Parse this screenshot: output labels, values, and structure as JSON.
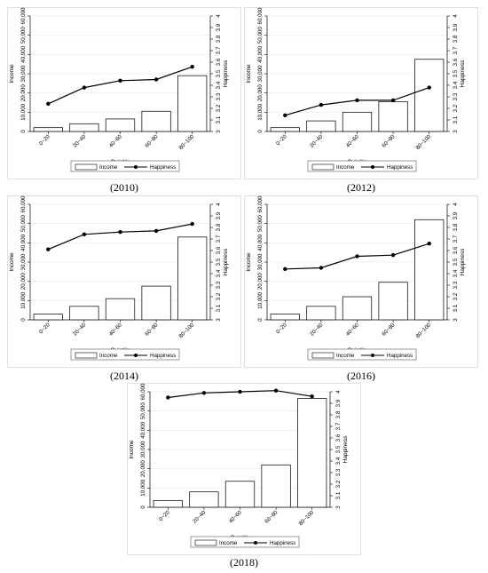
{
  "shared": {
    "xlabel": "Quintile",
    "ylabel_left": "Income",
    "ylabel_right": "Happiness",
    "categories": [
      "0~20",
      "20~40",
      "40~60",
      "60~80",
      "80~100"
    ],
    "left_ticks": [
      "0",
      "10,000",
      "20,000",
      "30,000",
      "40,000",
      "50,000",
      "60,000"
    ],
    "right_ticks": [
      "3",
      "3.1",
      "3.2",
      "3.3",
      "3.4",
      "3.5",
      "3.6",
      "3.7",
      "3.8",
      "3.9",
      "4"
    ],
    "legend": [
      "Income",
      "Happiness"
    ]
  },
  "chart_data": [
    {
      "type": "bar+line",
      "caption": "(2010)",
      "categories": [
        "0~20",
        "20~40",
        "40~60",
        "60~80",
        "80~100"
      ],
      "series": [
        {
          "name": "Income",
          "type": "bar",
          "axis": "left",
          "values": [
            2000,
            4000,
            6500,
            10500,
            29000
          ]
        },
        {
          "name": "Happiness",
          "type": "line",
          "axis": "right",
          "values": [
            3.24,
            3.38,
            3.44,
            3.45,
            3.56
          ]
        }
      ],
      "ylim_left": [
        0,
        60000
      ],
      "ylim_right": [
        3,
        4
      ],
      "grid": true,
      "legend_position": "bottom"
    },
    {
      "type": "bar+line",
      "caption": "(2012)",
      "categories": [
        "0~20",
        "20~40",
        "40~60",
        "60~80",
        "80~100"
      ],
      "series": [
        {
          "name": "Income",
          "type": "bar",
          "axis": "left",
          "values": [
            2000,
            5500,
            10000,
            15500,
            37500
          ]
        },
        {
          "name": "Happiness",
          "type": "line",
          "axis": "right",
          "values": [
            3.14,
            3.23,
            3.27,
            3.27,
            3.38
          ]
        }
      ],
      "ylim_left": [
        0,
        60000
      ],
      "ylim_right": [
        3,
        4
      ],
      "grid": true,
      "legend_position": "bottom"
    },
    {
      "type": "bar+line",
      "caption": "(2014)",
      "categories": [
        "0~20",
        "20~40",
        "40~60",
        "60~80",
        "80~100"
      ],
      "series": [
        {
          "name": "Income",
          "type": "bar",
          "axis": "left",
          "values": [
            3000,
            7000,
            11000,
            17500,
            43000
          ]
        },
        {
          "name": "Happiness",
          "type": "line",
          "axis": "right",
          "values": [
            3.61,
            3.74,
            3.76,
            3.77,
            3.83
          ]
        }
      ],
      "ylim_left": [
        0,
        60000
      ],
      "ylim_right": [
        3,
        4
      ],
      "grid": true,
      "legend_position": "bottom"
    },
    {
      "type": "bar+line",
      "caption": "(2016)",
      "categories": [
        "0~20",
        "20~40",
        "40~60",
        "60~80",
        "80~100"
      ],
      "series": [
        {
          "name": "Income",
          "type": "bar",
          "axis": "left",
          "values": [
            3000,
            7000,
            12000,
            19500,
            52000
          ]
        },
        {
          "name": "Happiness",
          "type": "line",
          "axis": "right",
          "values": [
            3.44,
            3.45,
            3.55,
            3.56,
            3.66
          ]
        }
      ],
      "ylim_left": [
        0,
        60000
      ],
      "ylim_right": [
        3,
        4
      ],
      "grid": true,
      "legend_position": "bottom"
    },
    {
      "type": "bar+line",
      "caption": "(2018)",
      "categories": [
        "0~20",
        "20~40",
        "40~60",
        "60~80",
        "80~100"
      ],
      "series": [
        {
          "name": "Income",
          "type": "bar",
          "axis": "left",
          "values": [
            3500,
            8000,
            13500,
            22000,
            56500
          ]
        },
        {
          "name": "Happiness",
          "type": "line",
          "axis": "right",
          "values": [
            3.95,
            3.99,
            4.0,
            4.01,
            3.96
          ]
        }
      ],
      "ylim_left": [
        0,
        60000
      ],
      "ylim_right": [
        3,
        4
      ],
      "grid": true,
      "legend_position": "bottom"
    }
  ]
}
